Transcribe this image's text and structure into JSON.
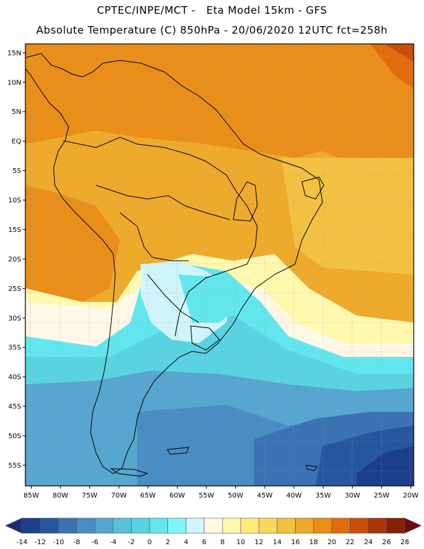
{
  "header": {
    "line1": "CPTEC/INPE/MCT -   Eta Model 15km - GFS",
    "line2": "Absolute Temperature (C) 850hPa - 20/06/2020 12UTC fct=258h"
  },
  "map": {
    "lon_ticks": [
      "85W",
      "80W",
      "75W",
      "70W",
      "65W",
      "60W",
      "55W",
      "50W",
      "45W",
      "40W",
      "35W",
      "30W",
      "25W",
      "20W"
    ],
    "lat_ticks": [
      "15N",
      "10N",
      "5N",
      "EQ",
      "5S",
      "10S",
      "15S",
      "20S",
      "25S",
      "30S",
      "35S",
      "40S",
      "45S",
      "50S",
      "55S"
    ],
    "extent": {
      "lon_min": -86,
      "lon_max": -19.5,
      "lat_max": 16.5,
      "lat_min": -58.5
    },
    "units": "C"
  },
  "colorbar": {
    "labels": [
      "-14",
      "-12",
      "-10",
      "-8",
      "-6",
      "-4",
      "-2",
      "0",
      "2",
      "4",
      "6",
      "8",
      "10",
      "12",
      "14",
      "16",
      "18",
      "20",
      "22",
      "24",
      "26",
      "28"
    ],
    "colors": [
      "#1b3f8c",
      "#2756a0",
      "#3a72b4",
      "#4a8dc2",
      "#56a6cf",
      "#5bbfd9",
      "#59d2e2",
      "#62e6ee",
      "#7ff7f7",
      "#cff5fb",
      "#fff8e6",
      "#fff9b0",
      "#ffeb7a",
      "#f8d85e",
      "#f2c142",
      "#eeaa2b",
      "#e98e19",
      "#e06c0d",
      "#c84e0b",
      "#a93608",
      "#872005"
    ],
    "under_color": "#1b2c74",
    "over_color": "#6b0b13"
  }
}
